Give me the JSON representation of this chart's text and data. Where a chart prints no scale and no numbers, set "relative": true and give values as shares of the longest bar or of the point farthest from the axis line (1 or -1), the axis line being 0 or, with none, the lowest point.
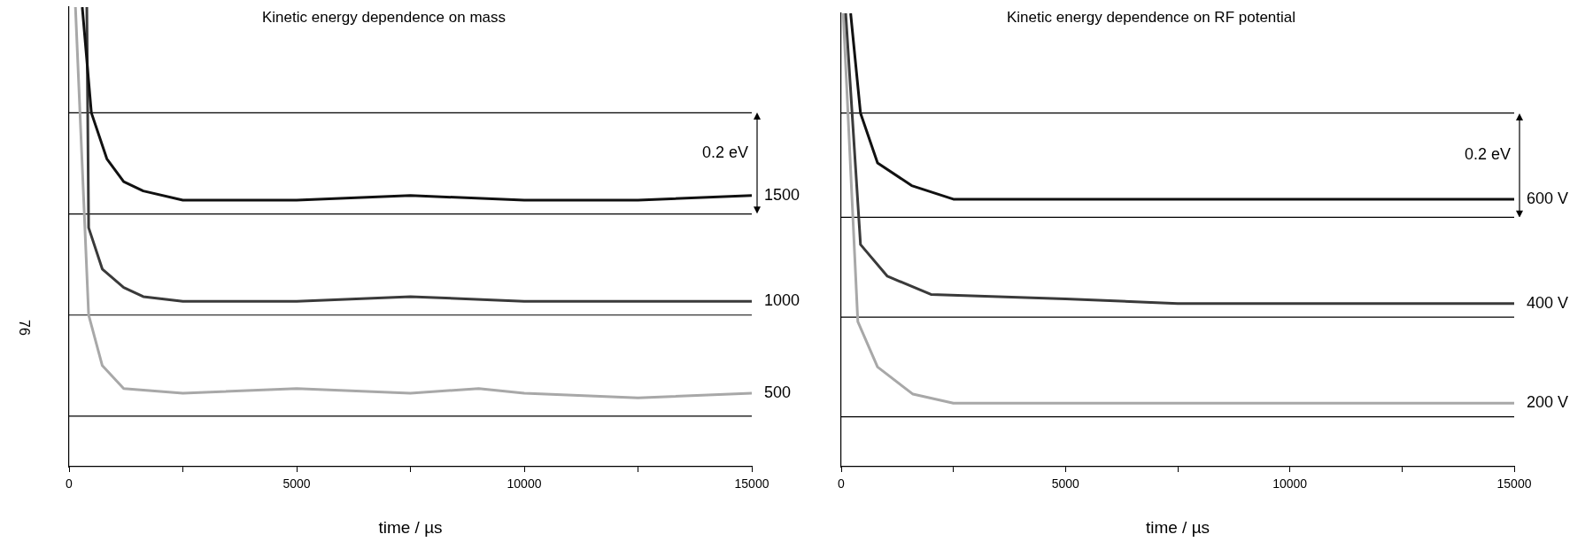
{
  "chart_data": [
    {
      "type": "line",
      "title": "Kinetic energy dependence on mass",
      "xlabel": "time / µs",
      "relative": true,
      "xlim": [
        0,
        15000
      ],
      "xticks": [
        0,
        {
          "value": 2500,
          "label": null
        },
        5000,
        {
          "value": 7500,
          "label": null
        },
        10000,
        {
          "value": 12500,
          "label": null
        },
        15000
      ],
      "grid": false,
      "legend": false,
      "marker": "none",
      "annotations": [
        "0.2 eV",
        "76"
      ],
      "ref_lines": [
        {
          "axis": "y",
          "value": 0.77,
          "color": "#000000"
        },
        {
          "axis": "y",
          "value": 0.55,
          "color": "#000000"
        },
        {
          "axis": "y",
          "value": 0.33,
          "color": "#000000"
        },
        {
          "axis": "y",
          "value": 0.11,
          "color": "#000000"
        }
      ],
      "series": [
        {
          "name": "1500",
          "color": "#111111",
          "x": [
            290,
            490,
            830,
            1200,
            1630,
            2500,
            5000,
            7500,
            10000,
            12500,
            15000
          ],
          "values": [
            1,
            0.77,
            0.67,
            0.62,
            0.6,
            0.58,
            0.58,
            0.59,
            0.58,
            0.58,
            0.59
          ]
        },
        {
          "name": "1000",
          "color": "#3a3a3a",
          "x": [
            390,
            430,
            730,
            1200,
            1630,
            2500,
            5000,
            7500,
            10000,
            12500,
            15000
          ],
          "values": [
            1,
            0.52,
            0.43,
            0.39,
            0.37,
            0.36,
            0.36,
            0.37,
            0.36,
            0.36,
            0.36
          ]
        },
        {
          "name": "500",
          "color": "#a8a8a8",
          "x": [
            140,
            430,
            730,
            1200,
            2500,
            5000,
            7500,
            9000,
            10000,
            12500,
            15000
          ],
          "values": [
            1,
            0.33,
            0.22,
            0.17,
            0.16,
            0.17,
            0.16,
            0.17,
            0.16,
            0.15,
            0.16
          ]
        }
      ]
    },
    {
      "type": "line",
      "title": "Kinetic energy dependence on RF potential",
      "xlabel": "time / µs",
      "relative": true,
      "xlim": [
        0,
        15000
      ],
      "xticks": [
        0,
        {
          "value": 2500,
          "label": null
        },
        5000,
        {
          "value": 7500,
          "label": null
        },
        10000,
        {
          "value": 12500,
          "label": null
        },
        15000
      ],
      "grid": false,
      "legend": false,
      "marker": "none",
      "annotations": [
        "0.2 eV"
      ],
      "ref_lines": [
        {
          "axis": "y",
          "value": 0.78,
          "color": "#000000"
        },
        {
          "axis": "y",
          "value": 0.55,
          "color": "#000000"
        },
        {
          "axis": "y",
          "value": 0.33,
          "color": "#000000"
        },
        {
          "axis": "y",
          "value": 0.11,
          "color": "#000000"
        }
      ],
      "series": [
        {
          "name": "600 V",
          "color": "#111111",
          "x": [
            210,
            430,
            810,
            1570,
            2500,
            5000,
            7500,
            10000,
            12500,
            15000
          ],
          "values": [
            1,
            0.78,
            0.67,
            0.62,
            0.59,
            0.59,
            0.59,
            0.59,
            0.59,
            0.59
          ]
        },
        {
          "name": "400 V",
          "color": "#3a3a3a",
          "x": [
            100,
            430,
            1030,
            2000,
            5000,
            7500,
            10000,
            12500,
            15000
          ],
          "values": [
            1,
            0.49,
            0.42,
            0.38,
            0.37,
            0.36,
            0.36,
            0.36,
            0.36
          ]
        },
        {
          "name": "200 V",
          "color": "#a8a8a8",
          "x": [
            45,
            370,
            810,
            1600,
            2500,
            5000,
            7500,
            10000,
            12500,
            15000
          ],
          "values": [
            1,
            0.32,
            0.22,
            0.16,
            0.14,
            0.14,
            0.14,
            0.14,
            0.14,
            0.14
          ]
        }
      ]
    }
  ]
}
